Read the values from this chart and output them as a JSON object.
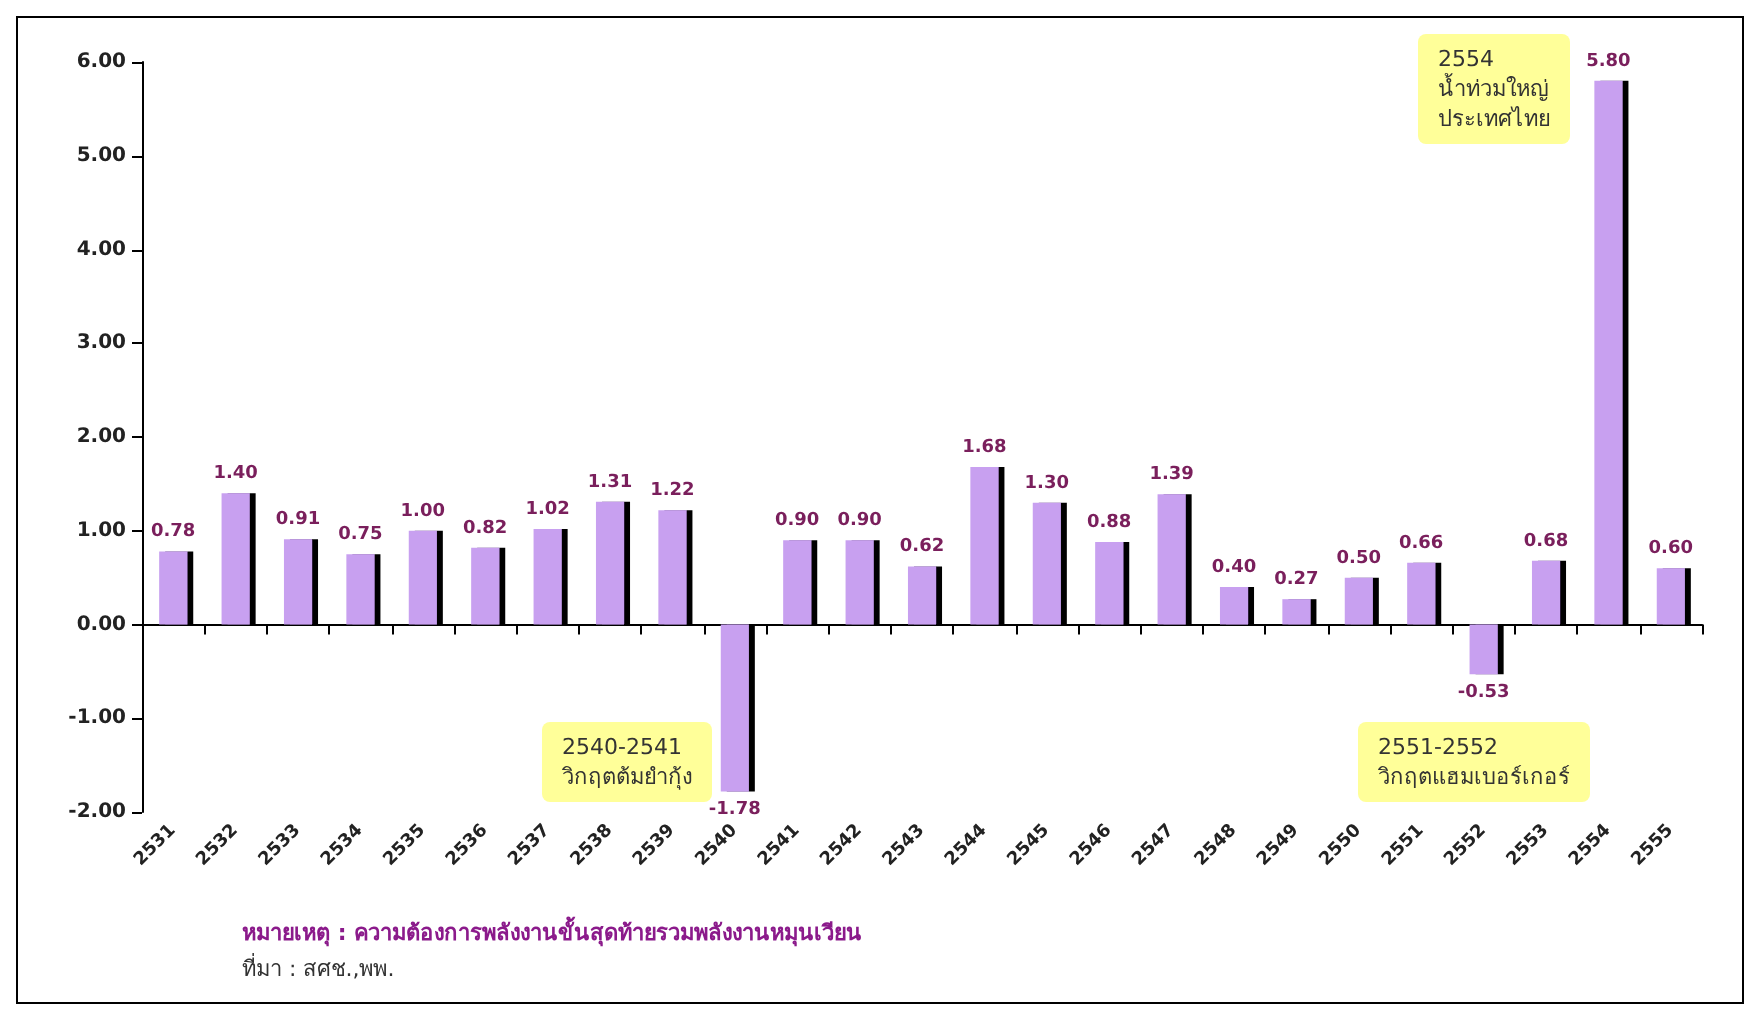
{
  "chart_data": {
    "type": "bar",
    "categories": [
      "2531",
      "2532",
      "2533",
      "2534",
      "2535",
      "2536",
      "2537",
      "2538",
      "2539",
      "2540",
      "2541",
      "2542",
      "2543",
      "2544",
      "2545",
      "2546",
      "2547",
      "2548",
      "2549",
      "2550",
      "2551",
      "2552",
      "2553",
      "2554",
      "2555"
    ],
    "series": [
      {
        "color": "#c8a0f0",
        "values": [
          0.78,
          1.4,
          0.91,
          0.75,
          1.0,
          0.82,
          1.02,
          1.31,
          1.22,
          -1.78,
          0.9,
          0.9,
          0.62,
          1.68,
          1.3,
          0.88,
          1.39,
          0.4,
          0.27,
          0.5,
          0.66,
          -0.53,
          0.68,
          5.8,
          0.6
        ]
      }
    ],
    "value_labels": [
      "0.78",
      "1.40",
      "0.91",
      "0.75",
      "1.00",
      "0.82",
      "1.02",
      "1.31",
      "1.22",
      "-1.78",
      "0.90",
      "0.90",
      "0.62",
      "1.68",
      "1.30",
      "0.88",
      "1.39",
      "0.40",
      "0.27",
      "0.50",
      "0.66",
      "-0.53",
      "0.68",
      "5.80",
      "0.60"
    ],
    "ylim": [
      -2,
      6
    ],
    "yticks": [
      {
        "value": -2,
        "label": "-2.00"
      },
      {
        "value": -1,
        "label": "-1.00"
      },
      {
        "value": 0,
        "label": "0.00"
      },
      {
        "value": 1,
        "label": "1.00"
      },
      {
        "value": 2,
        "label": "2.00"
      },
      {
        "value": 3,
        "label": "3.00"
      },
      {
        "value": 4,
        "label": "4.00"
      },
      {
        "value": 5,
        "label": "5.00"
      },
      {
        "value": 6,
        "label": "6.00"
      }
    ],
    "annotations": [
      "2554\nน้ำท่วมใหญ่\nประเทศไทย",
      "2540-2541\nวิกฤตต้มยำกุ้ง",
      "2551-2552\nวิกฤตแฮมเบอร์เกอร์",
      "หมายเหตุ : ความต้องการพลังงานขั้นสุดท้ายรวมพลังงานหมุนเวียน",
      "ที่มา : สศช.,พพ."
    ]
  }
}
